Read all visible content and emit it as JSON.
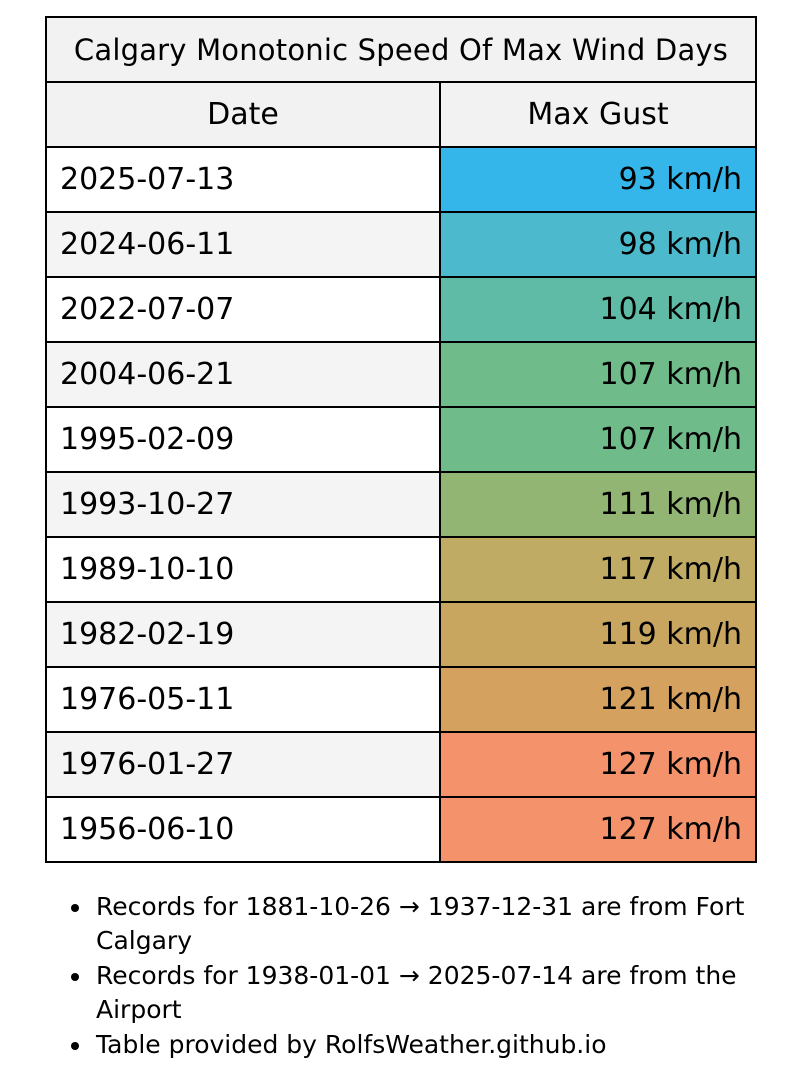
{
  "table": {
    "title": "Calgary Monotonic Speed Of Max Wind Days",
    "headers": {
      "date": "Date",
      "gust": "Max Gust"
    },
    "rows": [
      {
        "date": "2025-07-13",
        "gust": "93 km/h",
        "color": "#35b6ea"
      },
      {
        "date": "2024-06-11",
        "gust": "98 km/h",
        "color": "#4db9cc"
      },
      {
        "date": "2022-07-07",
        "gust": "104 km/h",
        "color": "#5fbba5"
      },
      {
        "date": "2004-06-21",
        "gust": "107 km/h",
        "color": "#70bb8a"
      },
      {
        "date": "1995-02-09",
        "gust": "107 km/h",
        "color": "#70bb8a"
      },
      {
        "date": "1993-10-27",
        "gust": "111 km/h",
        "color": "#93b574"
      },
      {
        "date": "1989-10-10",
        "gust": "117 km/h",
        "color": "#bfab63"
      },
      {
        "date": "1982-02-19",
        "gust": "119 km/h",
        "color": "#c8a660"
      },
      {
        "date": "1976-05-11",
        "gust": "121 km/h",
        "color": "#d4a15f"
      },
      {
        "date": "1976-01-27",
        "gust": "127 km/h",
        "color": "#f4926c"
      },
      {
        "date": "1956-06-10",
        "gust": "127 km/h",
        "color": "#f4926c"
      }
    ]
  },
  "notes": [
    "Records for 1881-10-26 → 1937-12-31 are from Fort Calgary",
    "Records for 1938-01-01 → 2025-07-14 are from the Airport",
    "Table provided by RolfsWeather.github.io"
  ]
}
